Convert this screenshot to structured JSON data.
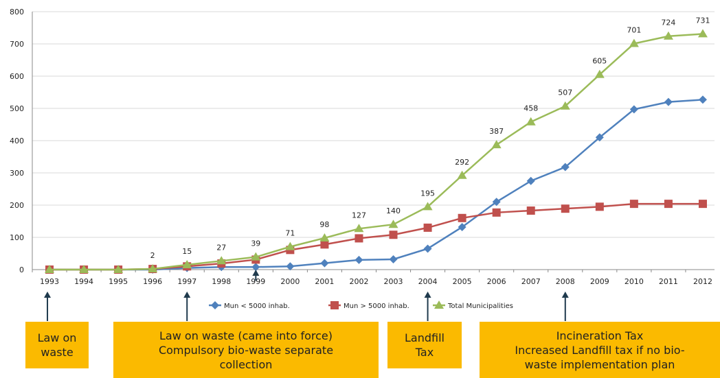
{
  "chart_data": {
    "type": "line",
    "title": "",
    "xlabel": "",
    "ylabel": "",
    "categories": [
      "1993",
      "1994",
      "1995",
      "1996",
      "1997",
      "1998",
      "1999",
      "2000",
      "2001",
      "2002",
      "2003",
      "2004",
      "2005",
      "2006",
      "2007",
      "2008",
      "2009",
      "2010",
      "2011",
      "2012"
    ],
    "ylim": [
      0,
      800
    ],
    "yticks": [
      0,
      100,
      200,
      300,
      400,
      500,
      600,
      700,
      800
    ],
    "grid": "horizontal",
    "legend_position": "bottom",
    "series": [
      {
        "name": "Mun < 5000 inhab.",
        "color": "#4F81BD",
        "marker": "diamond",
        "values": [
          0,
          0,
          0,
          0,
          5,
          8,
          8,
          10,
          20,
          30,
          32,
          65,
          132,
          210,
          275,
          318,
          410,
          497,
          520,
          527
        ]
      },
      {
        "name": "Mun > 5000 inhab.",
        "color": "#C0504D",
        "marker": "square",
        "values": [
          0,
          0,
          0,
          2,
          10,
          19,
          31,
          61,
          78,
          97,
          108,
          130,
          160,
          177,
          183,
          189,
          195,
          204,
          204,
          204
        ]
      },
      {
        "name": "Total Municipalities",
        "color": "#9BBB59",
        "marker": "triangle",
        "values": [
          0,
          0,
          0,
          2,
          15,
          27,
          39,
          71,
          98,
          127,
          140,
          195,
          292,
          387,
          458,
          507,
          605,
          701,
          724,
          731
        ]
      }
    ],
    "data_labels": [
      {
        "x": "1996",
        "text": "2"
      },
      {
        "x": "1997",
        "text": "15"
      },
      {
        "x": "1998",
        "text": "27"
      },
      {
        "x": "1999",
        "text": "39"
      },
      {
        "x": "2000",
        "text": "71"
      },
      {
        "x": "2001",
        "text": "98"
      },
      {
        "x": "2002",
        "text": "127"
      },
      {
        "x": "2003",
        "text": "140"
      },
      {
        "x": "2004",
        "text": "195"
      },
      {
        "x": "2005",
        "text": "292"
      },
      {
        "x": "2006",
        "text": "387"
      },
      {
        "x": "2007",
        "text": "458"
      },
      {
        "x": "2008",
        "text": "507"
      },
      {
        "x": "2009",
        "text": "605"
      },
      {
        "x": "2010",
        "text": "701"
      },
      {
        "x": "2011",
        "text": "724"
      },
      {
        "x": "2012",
        "text": "731"
      }
    ],
    "annotations": [
      {
        "x": "1993",
        "lines": [
          "Law on",
          "waste"
        ]
      },
      {
        "x": "1997",
        "lines": [
          "Law on waste (came into force)",
          "Compulsory bio-waste separate",
          "collection"
        ]
      },
      {
        "x": "1999",
        "lines": []
      },
      {
        "x": "2004",
        "lines": [
          "Landfill",
          "Tax"
        ]
      },
      {
        "x": "2008",
        "lines": [
          "Incineration Tax",
          "Increased Landfill tax if no bio-",
          "waste implementation plan"
        ]
      }
    ],
    "annotation_color": "#FBBA00",
    "arrow_color": "#1F3A4D"
  }
}
